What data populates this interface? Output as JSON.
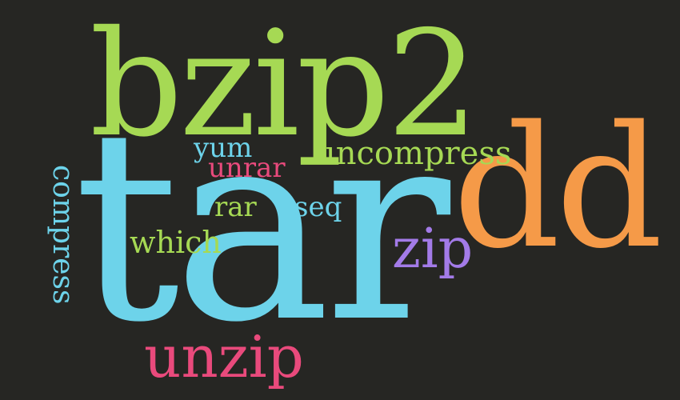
{
  "background_color": "#262623",
  "colors": {
    "green": "#a6d954",
    "cyan": "#6dd3ea",
    "orange": "#f59a48",
    "pink": "#e94a7c",
    "purple": "#a37be8"
  },
  "words": [
    {
      "text": "tar",
      "color": "#6dd3ea"
    },
    {
      "text": "bzip2",
      "color": "#a6d954"
    },
    {
      "text": "dd",
      "color": "#f59a48"
    },
    {
      "text": "uncompress",
      "color": "#a6d954"
    },
    {
      "text": "yum",
      "color": "#6dd3ea"
    },
    {
      "text": "unrar",
      "color": "#e94a7c"
    },
    {
      "text": "rar",
      "color": "#a6d954"
    },
    {
      "text": "seq",
      "color": "#6dd3ea"
    },
    {
      "text": "which",
      "color": "#a6d954"
    },
    {
      "text": "zip",
      "color": "#a37be8"
    },
    {
      "text": "unzip",
      "color": "#e94a7c"
    },
    {
      "text": "compress",
      "color": "#6dd3ea"
    }
  ]
}
